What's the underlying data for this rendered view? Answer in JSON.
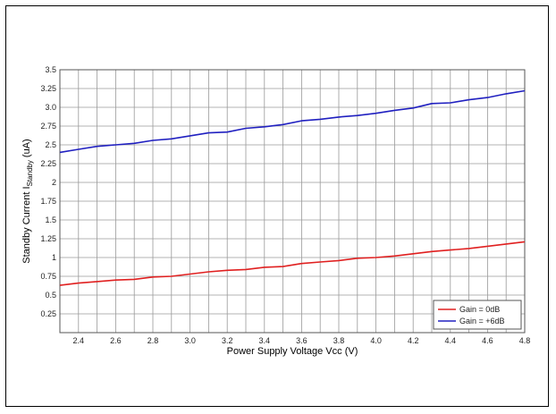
{
  "chart_data": {
    "type": "line",
    "title": "",
    "xlabel": "Power Supply Voltage Vcc (V)",
    "ylabel_parts": {
      "main": "Standby Current I",
      "sub": "Standby",
      "unit": " (uA)"
    },
    "xlim": [
      2.3,
      4.8
    ],
    "ylim": [
      0,
      3.5
    ],
    "x_ticks": [
      2.4,
      2.6,
      2.8,
      3.0,
      3.2,
      3.4,
      3.6,
      3.8,
      4.0,
      4.2,
      4.4,
      4.6,
      4.8
    ],
    "x_tick_labels": [
      "2.4",
      "2.6",
      "2.8",
      "3.0",
      "3.2",
      "3.4",
      "3.6",
      "3.8",
      "4.0",
      "4.2",
      "4.4",
      "4.6",
      "4.8"
    ],
    "x_minor_step": 0.1,
    "y_ticks": [
      0.25,
      0.5,
      0.75,
      1,
      1.25,
      1.5,
      1.75,
      2,
      2.25,
      2.5,
      2.75,
      3,
      3.25,
      3.5
    ],
    "y_tick_labels": [
      "0.25",
      "0.5",
      "0.75",
      "1",
      "1.25",
      "1.5",
      "1.75",
      "2",
      "2.25",
      "2.5",
      "2.75",
      "3.0",
      "3.25",
      "3.5"
    ],
    "grid": true,
    "legend_position": "bottom-right",
    "x": [
      2.3,
      2.4,
      2.5,
      2.6,
      2.7,
      2.8,
      2.9,
      3.0,
      3.1,
      3.2,
      3.3,
      3.4,
      3.5,
      3.6,
      3.7,
      3.8,
      3.9,
      4.0,
      4.1,
      4.2,
      4.3,
      4.4,
      4.5,
      4.6,
      4.7,
      4.8
    ],
    "series": [
      {
        "name": "Gain = 0dB",
        "color": "#e02020",
        "values": [
          0.63,
          0.66,
          0.68,
          0.7,
          0.71,
          0.74,
          0.75,
          0.78,
          0.81,
          0.83,
          0.84,
          0.87,
          0.88,
          0.92,
          0.94,
          0.96,
          0.99,
          1.0,
          1.02,
          1.05,
          1.08,
          1.1,
          1.12,
          1.15,
          1.18,
          1.21
        ]
      },
      {
        "name": "Gain = +6dB",
        "color": "#2020c0",
        "values": [
          2.4,
          2.44,
          2.48,
          2.5,
          2.52,
          2.56,
          2.58,
          2.62,
          2.66,
          2.67,
          2.72,
          2.74,
          2.77,
          2.82,
          2.84,
          2.87,
          2.89,
          2.92,
          2.96,
          2.99,
          3.05,
          3.06,
          3.1,
          3.13,
          3.18,
          3.22
        ]
      }
    ]
  }
}
